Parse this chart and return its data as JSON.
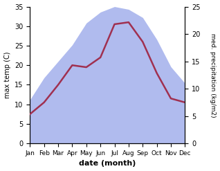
{
  "months": [
    "Jan",
    "Feb",
    "Mar",
    "Apr",
    "May",
    "Jun",
    "Jul",
    "Aug",
    "Sep",
    "Oct",
    "Nov",
    "Dec"
  ],
  "month_indices": [
    0,
    1,
    2,
    3,
    4,
    5,
    6,
    7,
    8,
    9,
    10,
    11
  ],
  "temperature": [
    7.5,
    10.5,
    15.0,
    20.0,
    19.5,
    22.0,
    30.5,
    31.0,
    26.0,
    18.0,
    11.5,
    10.5
  ],
  "precipitation": [
    8.0,
    12.0,
    15.0,
    18.0,
    22.0,
    24.0,
    25.0,
    24.5,
    23.0,
    19.0,
    14.0,
    11.0
  ],
  "temp_color": "#a03050",
  "precip_color": "#b0bbee",
  "temp_ylim": [
    0,
    35
  ],
  "precip_ylim": [
    0,
    25
  ],
  "temp_yticks": [
    0,
    5,
    10,
    15,
    20,
    25,
    30,
    35
  ],
  "precip_yticks": [
    0,
    5,
    10,
    15,
    20,
    25
  ],
  "ylabel_left": "max temp (C)",
  "ylabel_right": "med. precipitation (kg/m2)",
  "xlabel": "date (month)",
  "bg_color": "#ffffff"
}
